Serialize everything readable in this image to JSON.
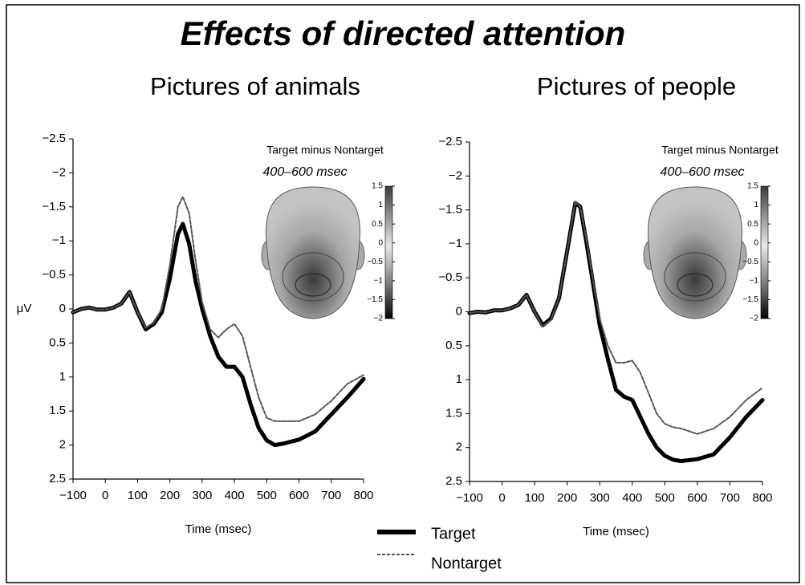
{
  "title": "Effects of directed attention",
  "chart_data": [
    {
      "type": "line",
      "title": "Pictures of animals",
      "xlabel": "Time (msec)",
      "ylabel": "μV",
      "x": [
        -100,
        -75,
        -50,
        -25,
        0,
        25,
        50,
        75,
        100,
        125,
        150,
        175,
        200,
        225,
        240,
        260,
        280,
        300,
        325,
        350,
        375,
        400,
        425,
        450,
        475,
        500,
        525,
        550,
        600,
        650,
        700,
        750,
        800
      ],
      "series": [
        {
          "name": "Target",
          "color": "#000000",
          "values": [
            0.05,
            0,
            -0.02,
            0.01,
            0.01,
            -0.02,
            -0.08,
            -0.25,
            0.05,
            0.3,
            0.22,
            0.05,
            -0.45,
            -1.1,
            -1.25,
            -0.95,
            -0.4,
            0.0,
            0.4,
            0.7,
            0.85,
            0.85,
            1.0,
            1.4,
            1.75,
            1.93,
            2.0,
            1.98,
            1.92,
            1.8,
            1.55,
            1.3,
            1.03
          ]
        },
        {
          "name": "Nontarget",
          "color": "#555555",
          "values": [
            0.05,
            0,
            -0.02,
            0.01,
            0.01,
            -0.02,
            -0.08,
            -0.25,
            0.05,
            0.28,
            0.2,
            0.0,
            -0.65,
            -1.5,
            -1.65,
            -1.4,
            -0.7,
            -0.1,
            0.3,
            0.42,
            0.3,
            0.22,
            0.4,
            0.85,
            1.3,
            1.6,
            1.65,
            1.65,
            1.65,
            1.55,
            1.35,
            1.1,
            0.97
          ]
        }
      ],
      "xlim": [
        -100,
        800
      ],
      "xticks": [
        {
          "value": -100,
          "label": "−100"
        },
        0,
        100,
        200,
        300,
        400,
        500,
        600,
        700,
        800
      ],
      "ylim": [
        2.5,
        -2.5
      ],
      "yticks": [
        {
          "value": -2.5,
          "label": "−2.5"
        },
        {
          "value": -2,
          "label": "−2"
        },
        {
          "value": -1.5,
          "label": "−1.5"
        },
        {
          "value": -1,
          "label": "−1"
        },
        {
          "value": -0.5,
          "label": "−0.5"
        },
        0,
        0.5,
        1,
        1.5,
        2,
        2.5
      ],
      "inset": {
        "title": "Target minus Nontarget",
        "subtitle": "400–600 msec",
        "colorbar_lim": [
          -2,
          1.5
        ],
        "colorbar_ticks": [
          1.5,
          1,
          0.5,
          0,
          {
            "value": -0.5,
            "label": "−0.5"
          },
          {
            "value": -1,
            "label": "−1"
          },
          {
            "value": -1.5,
            "label": "−1.5"
          },
          {
            "value": -2,
            "label": "−2"
          }
        ]
      }
    },
    {
      "type": "line",
      "title": "Pictures of people",
      "xlabel": "Time (msec)",
      "x": [
        -100,
        -75,
        -50,
        -25,
        0,
        25,
        50,
        75,
        100,
        125,
        150,
        175,
        200,
        225,
        240,
        260,
        280,
        300,
        325,
        350,
        375,
        400,
        425,
        450,
        475,
        500,
        525,
        550,
        600,
        650,
        700,
        750,
        800
      ],
      "series": [
        {
          "name": "Target",
          "color": "#000000",
          "values": [
            0.02,
            0,
            0.01,
            -0.02,
            -0.02,
            -0.05,
            -0.1,
            -0.25,
            0.0,
            0.2,
            0.1,
            -0.2,
            -0.9,
            -1.6,
            -1.55,
            -1.0,
            -0.4,
            0.2,
            0.7,
            1.15,
            1.25,
            1.3,
            1.55,
            1.8,
            2.0,
            2.12,
            2.18,
            2.2,
            2.17,
            2.1,
            1.85,
            1.55,
            1.3
          ]
        },
        {
          "name": "Nontarget",
          "color": "#555555",
          "values": [
            0.02,
            0,
            0.01,
            -0.02,
            -0.02,
            -0.05,
            -0.1,
            -0.25,
            0.0,
            0.22,
            0.12,
            -0.2,
            -0.9,
            -1.62,
            -1.55,
            -1.05,
            -0.45,
            0.1,
            0.5,
            0.75,
            0.75,
            0.72,
            0.9,
            1.2,
            1.5,
            1.65,
            1.7,
            1.72,
            1.8,
            1.72,
            1.55,
            1.3,
            1.12
          ]
        }
      ],
      "xlim": [
        -100,
        800
      ],
      "xticks": [
        {
          "value": -100,
          "label": "−100"
        },
        0,
        100,
        200,
        300,
        400,
        500,
        600,
        700,
        800
      ],
      "ylim": [
        2.5,
        -2.5
      ],
      "yticks": [
        {
          "value": -2.5,
          "label": "−2.5"
        },
        {
          "value": -2,
          "label": "−2"
        },
        {
          "value": -1.5,
          "label": "−1.5"
        },
        {
          "value": -1,
          "label": "−1"
        },
        {
          "value": -0.5,
          "label": "−0.5"
        },
        0,
        0.5,
        1,
        1.5,
        2,
        2.5
      ],
      "inset": {
        "title": "Target minus Nontarget",
        "subtitle": "400–600 msec",
        "colorbar_lim": [
          -2,
          1.5
        ],
        "colorbar_ticks": [
          1.5,
          1,
          0.5,
          0,
          {
            "value": -0.5,
            "label": "−0.5"
          },
          {
            "value": -1,
            "label": "−1"
          },
          {
            "value": -1.5,
            "label": "−1.5"
          },
          {
            "value": -2,
            "label": "−2"
          }
        ]
      }
    }
  ]
}
